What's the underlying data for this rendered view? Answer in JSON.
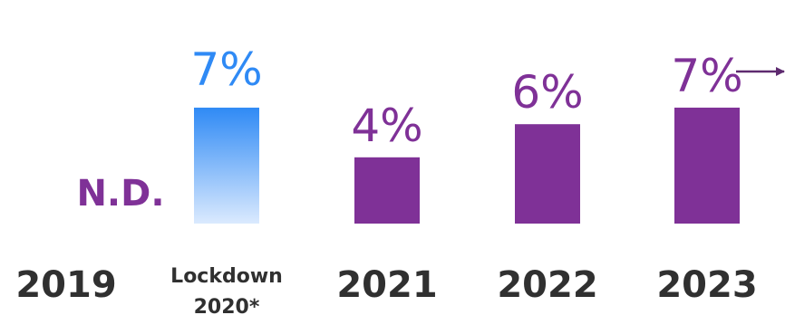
{
  "chart_data": {
    "type": "bar",
    "categories": [
      "2019",
      "Lockdown 2020*",
      "2021",
      "2022",
      "2023"
    ],
    "category_lines": [
      [
        "2019"
      ],
      [
        "Lockdown",
        "2020*"
      ],
      [
        "2021"
      ],
      [
        "2022"
      ],
      [
        "2023"
      ]
    ],
    "values": [
      null,
      7,
      4,
      6,
      7
    ],
    "value_labels": [
      "N.D.",
      "7%",
      "4%",
      "6%",
      "7%"
    ],
    "ylim": [
      0,
      8
    ],
    "grid": false,
    "title": "",
    "xlabel": "",
    "ylabel": "",
    "colors": {
      "primary": "#7f3197",
      "highlight_top": "#2f8af5",
      "highlight_bottom": "#dbeafe",
      "highlight_label": "#2f8af5",
      "category_text": "#303030"
    },
    "annotations": [
      {
        "type": "arrow",
        "category": "2023",
        "direction": "right",
        "color": "#5e2a6f"
      }
    ]
  }
}
